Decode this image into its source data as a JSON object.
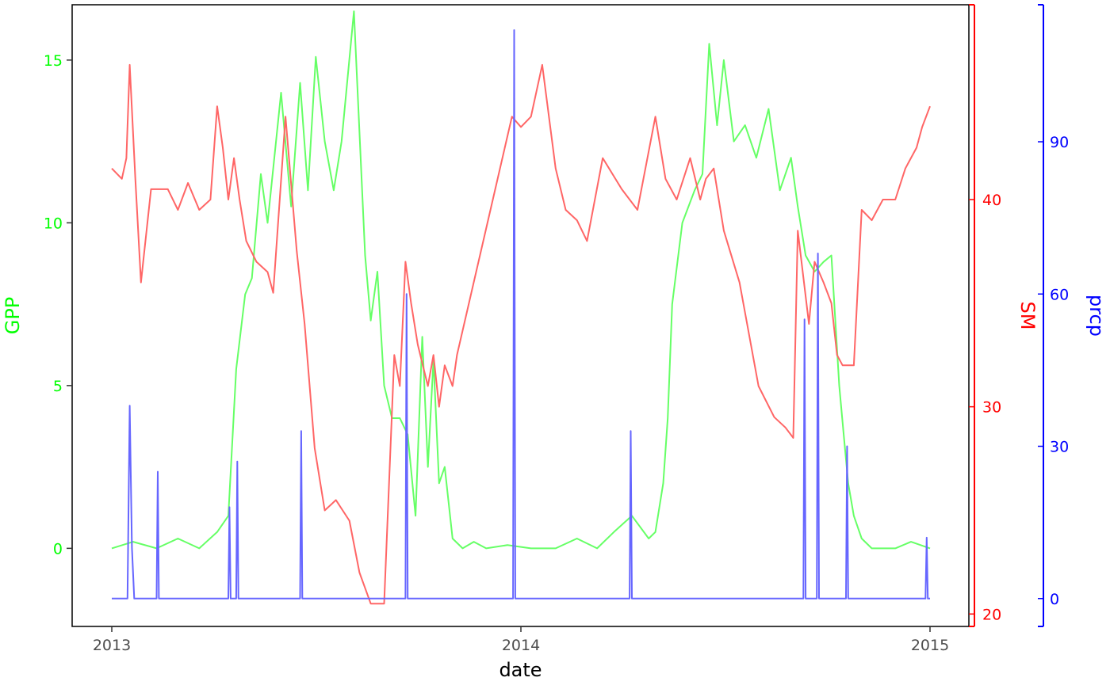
{
  "chart_data": {
    "type": "line",
    "title": "",
    "xlabel": "date",
    "x_range": [
      "2013-01-01",
      "2015-01-01"
    ],
    "x_ticks": [
      {
        "label": "2013",
        "date": "2013-01-01"
      },
      {
        "label": "2014",
        "date": "2014-01-01"
      },
      {
        "label": "2015",
        "date": "2015-01-01"
      }
    ],
    "grid": false,
    "legend": "none",
    "axes": [
      {
        "id": "GPP",
        "side": "left",
        "label": "GPP",
        "color": "#00ff00",
        "range": [
          -2.4,
          16.7
        ],
        "ticks": [
          {
            "label": "0",
            "v": 0
          },
          {
            "label": "5",
            "v": 5
          },
          {
            "label": "10",
            "v": 10
          },
          {
            "label": "15",
            "v": 15
          }
        ]
      },
      {
        "id": "SM",
        "side": "right",
        "label": "SM",
        "color": "#ff0000",
        "range": [
          19.4,
          49.4
        ],
        "ticks": [
          {
            "label": "20",
            "v": 20
          },
          {
            "label": "30",
            "v": 30
          },
          {
            "label": "40",
            "v": 40
          }
        ]
      },
      {
        "id": "prcp",
        "side": "right",
        "label": "prcp",
        "color": "#0000ff",
        "range": [
          -5.5,
          117
        ],
        "ticks": [
          {
            "label": "0",
            "v": 0
          },
          {
            "label": "30",
            "v": 30
          },
          {
            "label": "60",
            "v": 60
          },
          {
            "label": "90",
            "v": 90
          }
        ]
      }
    ],
    "series": [
      {
        "axis": "GPP",
        "color": "#66ff66",
        "x": [
          "2013-01-01",
          "2013-01-20",
          "2013-02-10",
          "2013-03-01",
          "2013-03-20",
          "2013-04-05",
          "2013-04-15",
          "2013-04-22",
          "2013-04-30",
          "2013-05-06",
          "2013-05-14",
          "2013-05-20",
          "2013-06-01",
          "2013-06-10",
          "2013-06-18",
          "2013-06-25",
          "2013-07-02",
          "2013-07-10",
          "2013-07-18",
          "2013-07-25",
          "2013-08-05",
          "2013-08-15",
          "2013-08-20",
          "2013-08-26",
          "2013-09-01",
          "2013-09-08",
          "2013-09-15",
          "2013-09-22",
          "2013-09-29",
          "2013-10-05",
          "2013-10-10",
          "2013-10-15",
          "2013-10-20",
          "2013-10-25",
          "2013-11-01",
          "2013-11-10",
          "2013-11-20",
          "2013-12-01",
          "2013-12-20",
          "2014-01-10",
          "2014-02-01",
          "2014-02-20",
          "2014-03-10",
          "2014-03-25",
          "2014-04-10",
          "2014-04-25",
          "2014-05-01",
          "2014-05-08",
          "2014-05-12",
          "2014-05-16",
          "2014-05-25",
          "2014-06-05",
          "2014-06-12",
          "2014-06-18",
          "2014-06-25",
          "2014-07-01",
          "2014-07-10",
          "2014-07-20",
          "2014-07-30",
          "2014-08-10",
          "2014-08-20",
          "2014-08-30",
          "2014-09-05",
          "2014-09-12",
          "2014-09-20",
          "2014-09-28",
          "2014-10-05",
          "2014-10-12",
          "2014-10-16",
          "2014-10-20",
          "2014-10-25",
          "2014-11-01",
          "2014-11-10",
          "2014-11-20",
          "2014-12-01",
          "2014-12-15",
          "2015-01-01"
        ],
        "values": [
          0,
          0.2,
          0,
          0.3,
          0,
          0.5,
          1.0,
          5.5,
          7.8,
          8.3,
          11.5,
          10.0,
          14.0,
          10.5,
          14.3,
          11.0,
          15.1,
          12.5,
          11.0,
          12.5,
          16.5,
          9.0,
          7.0,
          8.5,
          5.0,
          4.0,
          4.0,
          3.5,
          1.0,
          6.5,
          2.5,
          5.8,
          2.0,
          2.5,
          0.3,
          0,
          0.2,
          0,
          0.1,
          0,
          0,
          0.3,
          0,
          0.5,
          1.0,
          0.3,
          0.5,
          2.0,
          4.0,
          7.5,
          10.0,
          11.0,
          11.5,
          15.5,
          13.0,
          15.0,
          12.5,
          13.0,
          12.0,
          13.5,
          11.0,
          12.0,
          10.5,
          9.0,
          8.5,
          8.8,
          9.0,
          5.0,
          3.5,
          2.0,
          1.0,
          0.3,
          0,
          0,
          0,
          0.2,
          0
        ]
      },
      {
        "axis": "SM",
        "color": "#ff6666",
        "x": [
          "2013-01-01",
          "2013-01-10",
          "2013-01-14",
          "2013-01-17",
          "2013-01-22",
          "2013-01-27",
          "2013-02-05",
          "2013-02-10",
          "2013-02-20",
          "2013-03-01",
          "2013-03-10",
          "2013-03-20",
          "2013-03-30",
          "2013-04-05",
          "2013-04-10",
          "2013-04-15",
          "2013-04-20",
          "2013-04-25",
          "2013-05-01",
          "2013-05-10",
          "2013-05-20",
          "2013-05-25",
          "2013-06-05",
          "2013-06-15",
          "2013-06-22",
          "2013-07-01",
          "2013-07-10",
          "2013-07-20",
          "2013-08-01",
          "2013-08-10",
          "2013-08-20",
          "2013-09-01",
          "2013-09-10",
          "2013-09-15",
          "2013-09-20",
          "2013-09-25",
          "2013-10-01",
          "2013-10-10",
          "2013-10-15",
          "2013-10-20",
          "2013-10-25",
          "2013-11-01",
          "2013-11-05",
          "2013-12-24",
          "2014-01-01",
          "2014-01-10",
          "2014-01-20",
          "2014-02-01",
          "2014-02-10",
          "2014-02-20",
          "2014-03-01",
          "2014-03-15",
          "2014-04-01",
          "2014-04-15",
          "2014-05-01",
          "2014-05-10",
          "2014-05-20",
          "2014-06-01",
          "2014-06-10",
          "2014-06-15",
          "2014-06-22",
          "2014-07-01",
          "2014-07-15",
          "2014-08-01",
          "2014-08-15",
          "2014-08-25",
          "2014-09-01",
          "2014-09-05",
          "2014-09-15",
          "2014-09-20",
          "2014-09-28",
          "2014-10-05",
          "2014-10-10",
          "2014-10-15",
          "2014-10-20",
          "2014-10-25",
          "2014-11-01",
          "2014-11-10",
          "2014-11-20",
          "2014-12-01",
          "2014-12-10",
          "2014-12-20",
          "2014-12-25",
          "2015-01-01"
        ],
        "values": [
          41.5,
          41.0,
          42.0,
          46.5,
          41.0,
          36.0,
          40.5,
          40.5,
          40.5,
          39.5,
          40.8,
          39.5,
          40.0,
          44.5,
          42.5,
          40.0,
          42.0,
          40.0,
          38.0,
          37.0,
          36.5,
          35.5,
          44.0,
          37.5,
          34.0,
          28.0,
          25.0,
          25.5,
          24.5,
          22.0,
          20.5,
          20.5,
          32.5,
          31.0,
          37.0,
          35.0,
          33.0,
          31.0,
          32.5,
          30.0,
          32.0,
          31.0,
          32.5,
          44.0,
          43.5,
          44.0,
          46.5,
          41.5,
          39.5,
          39.0,
          38.0,
          42.0,
          40.5,
          39.5,
          44.0,
          41.0,
          40.0,
          42.0,
          40.0,
          41.0,
          41.5,
          38.5,
          36.0,
          31.0,
          29.5,
          29.0,
          28.5,
          38.5,
          34.0,
          37.0,
          36.0,
          35.0,
          32.5,
          32.0,
          32.0,
          32.0,
          39.5,
          39.0,
          40.0,
          40.0,
          41.5,
          42.5,
          43.5,
          44.5
        ]
      },
      {
        "axis": "prcp",
        "color": "#6666ff",
        "x": [
          "2013-01-01",
          "2013-01-15",
          "2013-01-17",
          "2013-01-19",
          "2013-01-21",
          "2013-02-10",
          "2013-02-11",
          "2013-02-12",
          "2013-04-15",
          "2013-04-16",
          "2013-04-17",
          "2013-04-22",
          "2013-04-23",
          "2013-04-24",
          "2013-06-18",
          "2013-06-19",
          "2013-06-20",
          "2013-09-20",
          "2013-09-21",
          "2013-09-22",
          "2013-12-25",
          "2013-12-26",
          "2013-12-27",
          "2013-12-28",
          "2014-04-08",
          "2014-04-09",
          "2014-04-10",
          "2014-09-10",
          "2014-09-11",
          "2014-09-12",
          "2014-09-22",
          "2014-09-23",
          "2014-09-24",
          "2014-10-18",
          "2014-10-19",
          "2014-10-20",
          "2014-12-28",
          "2014-12-29",
          "2014-12-30",
          "2015-01-01"
        ],
        "values": [
          0,
          0,
          38,
          10,
          0,
          0,
          25,
          0,
          0,
          18,
          0,
          0,
          27,
          0,
          0,
          33,
          0,
          0,
          60,
          0,
          0,
          112,
          0,
          0,
          0,
          33,
          0,
          0,
          55,
          0,
          0,
          68,
          0,
          0,
          30,
          0,
          0,
          12,
          0,
          0
        ]
      }
    ]
  }
}
